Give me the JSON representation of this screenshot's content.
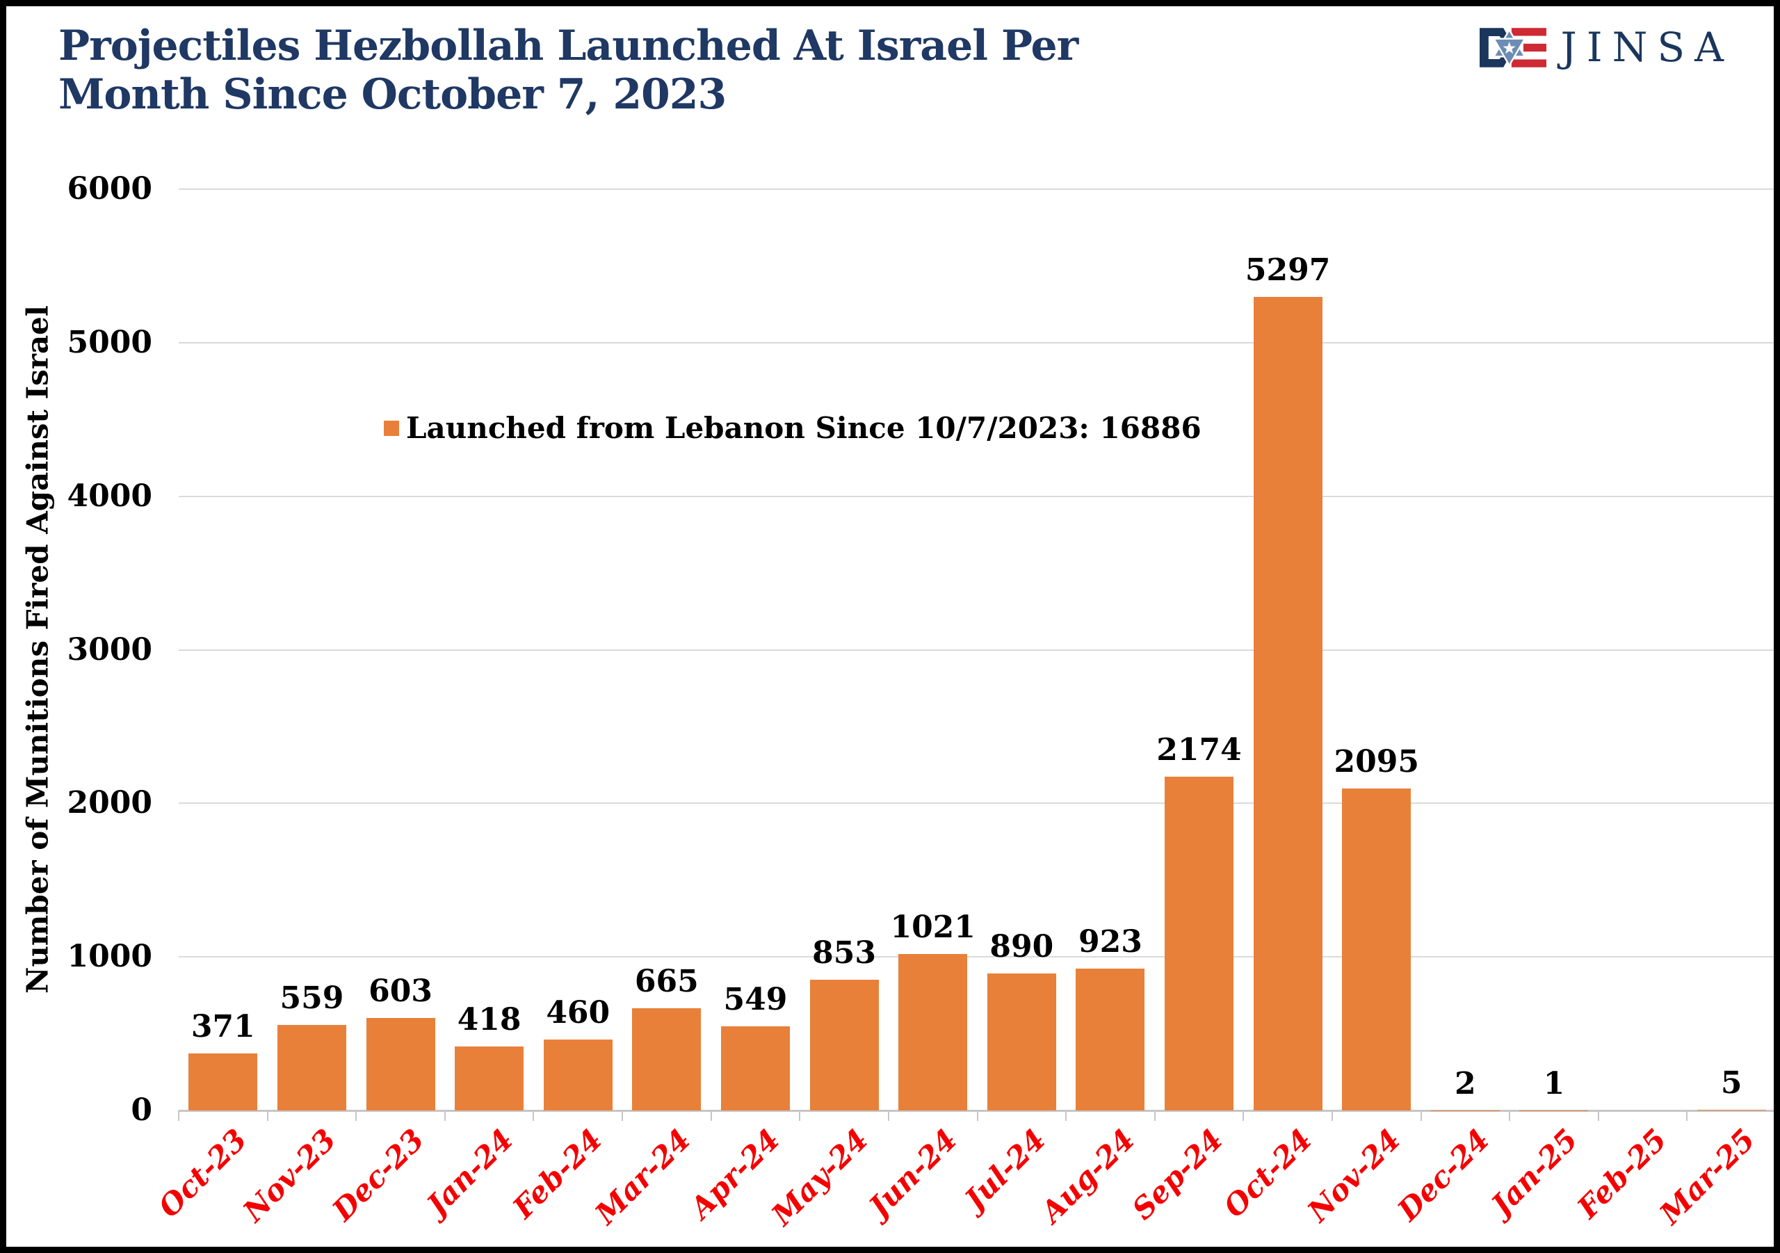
{
  "header": {
    "title_line1": "Projectiles Hezbollah Launched At Israel Per",
    "title_line2": "Month Since October 7, 2023",
    "logo_text": "JINSA"
  },
  "legend": {
    "label": "Launched from Lebanon Since 10/7/2023: 16886",
    "marker_color": "#E8803A"
  },
  "chart_data": {
    "type": "bar",
    "title": "Projectiles Hezbollah Launched At Israel Per Month Since October 7, 2023",
    "categories": [
      "Oct-23",
      "Nov-23",
      "Dec-23",
      "Jan-24",
      "Feb-24",
      "Mar-24",
      "Apr-24",
      "May-24",
      "Jun-24",
      "Jul-24",
      "Aug-24",
      "Sep-24",
      "Oct-24",
      "Nov-24",
      "Dec-24",
      "Jan-25",
      "Feb-25",
      "Mar-25"
    ],
    "values": [
      371,
      559,
      603,
      418,
      460,
      665,
      549,
      853,
      1021,
      890,
      923,
      2174,
      5297,
      2095,
      2,
      1,
      0,
      5
    ],
    "bar_labels": [
      "371",
      "559",
      "603",
      "418",
      "460",
      "665",
      "549",
      "853",
      "1021",
      "890",
      "923",
      "2174",
      "5297",
      "2095",
      "2",
      "1",
      "",
      "5"
    ],
    "xlabel": "",
    "ylabel": "Number of Munitions Fired Against Israel",
    "ylim": [
      0,
      6000
    ],
    "yticks": [
      0,
      1000,
      2000,
      3000,
      4000,
      5000,
      6000
    ],
    "grid": true,
    "legend_entries": [
      "Launched from Lebanon Since 10/7/2023: 16886"
    ],
    "legend_position": "inside-upper-left",
    "total_shown_in_legend": 16886
  },
  "colors": {
    "title_navy": "#1F3864",
    "bar_orange": "#E8803A",
    "x_label_red": "#F40000",
    "gridline_gray": "#DADADA",
    "axis_gray": "#C6C6C6",
    "data_label_black": "#000000",
    "frame_border_black": "#000000",
    "logo_navy": "#1B365D",
    "logo_red": "#CE2A33",
    "logo_steel_blue": "#6C8CB3"
  }
}
